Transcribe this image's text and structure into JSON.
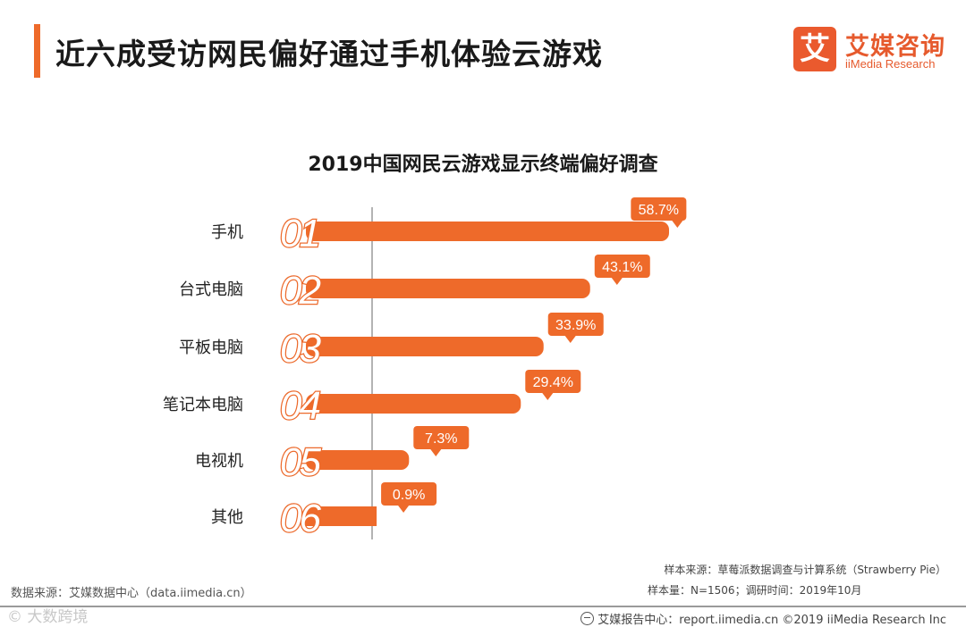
{
  "header": {
    "title": "近六成受访网民偏好通过手机体验云游戏",
    "logo_mark": "艾",
    "logo_cn": "艾媒咨询",
    "logo_en": "iiMedia Research"
  },
  "chart_data": {
    "type": "bar",
    "orientation": "horizontal",
    "title": "2019中国网民云游戏显示终端偏好调查",
    "categories": [
      "手机",
      "台式电脑",
      "平板电脑",
      "笔记本电脑",
      "电视机",
      "其他"
    ],
    "ranks": [
      "01",
      "02",
      "03",
      "04",
      "05",
      "06"
    ],
    "values": [
      58.7,
      43.1,
      33.9,
      29.4,
      7.3,
      0.9
    ],
    "value_labels": [
      "58.7%",
      "43.1%",
      "33.9%",
      "29.4%",
      "7.3%",
      "0.9%"
    ],
    "unit": "%",
    "xlim": [
      0,
      60
    ],
    "color": "#ee6a2a",
    "rank_color": "#ec6a2c",
    "grid": false
  },
  "sources": {
    "left": "数据来源：艾媒数据中心（data.iimedia.cn）",
    "sample_source": "样本来源：草莓派数据调查与计算系统（Strawberry Pie）",
    "sample_info": "样本量：N=1506；调研时间：2019年10月"
  },
  "footer": {
    "watermark": "©  大数跨境",
    "center": "艾媒报告中心：report.iimedia.cn ©2019  iiMedia Research  Inc"
  }
}
